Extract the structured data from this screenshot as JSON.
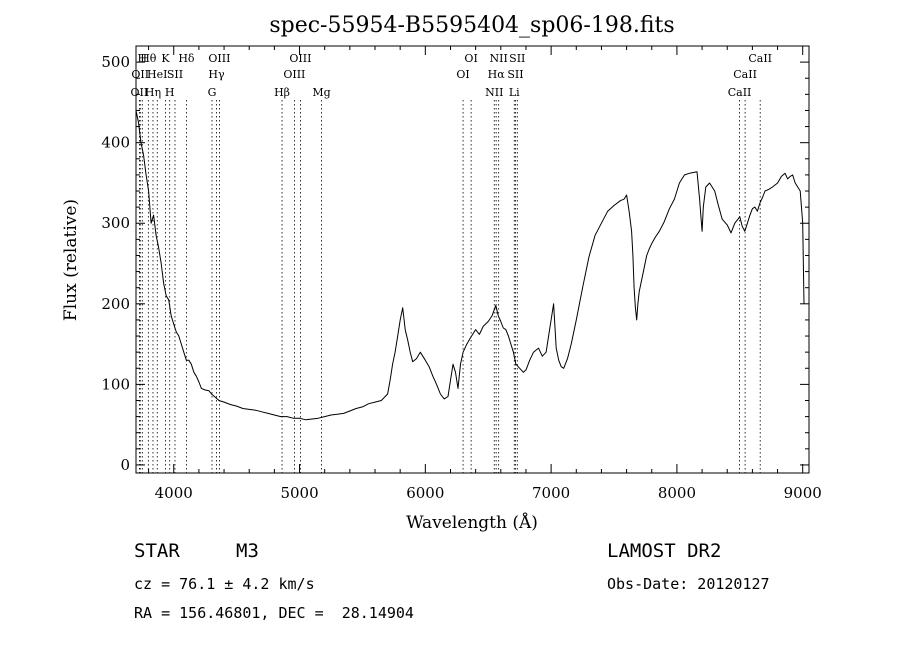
{
  "chart_data": {
    "type": "line",
    "title": "spec-55954-B5595404_sp06-198.fits",
    "xlabel": "Wavelength (Å)",
    "ylabel": "Flux (relative)",
    "xlim": [
      3700,
      9050
    ],
    "ylim": [
      -10,
      520
    ],
    "xticks": [
      4000,
      5000,
      6000,
      7000,
      8000,
      9000
    ],
    "yticks": [
      0,
      100,
      200,
      300,
      400,
      500
    ],
    "grid": false,
    "series": [
      {
        "x": [
          3700,
          3720,
          3740,
          3760,
          3780,
          3800,
          3820,
          3840,
          3860,
          3880,
          3900,
          3920,
          3940,
          3960,
          3980,
          4000,
          4020,
          4040,
          4060,
          4080,
          4100,
          4120,
          4140,
          4160,
          4180,
          4200,
          4220,
          4250,
          4280,
          4300,
          4330,
          4360,
          4400,
          4450,
          4500,
          4550,
          4600,
          4650,
          4700,
          4750,
          4800,
          4850,
          4900,
          4950,
          5000,
          5050,
          5100,
          5150,
          5200,
          5250,
          5300,
          5350,
          5400,
          5450,
          5500,
          5550,
          5600,
          5650,
          5700,
          5720,
          5740,
          5760,
          5780,
          5800,
          5820,
          5840,
          5860,
          5880,
          5900,
          5930,
          5960,
          6000,
          6030,
          6060,
          6090,
          6120,
          6150,
          6180,
          6200,
          6220,
          6240,
          6260,
          6280,
          6300,
          6330,
          6360,
          6400,
          6430,
          6460,
          6500,
          6530,
          6560,
          6580,
          6600,
          6620,
          6640,
          6660,
          6680,
          6700,
          6720,
          6750,
          6780,
          6800,
          6830,
          6860,
          6900,
          6930,
          6960,
          6980,
          7000,
          7020,
          7040,
          7060,
          7080,
          7100,
          7130,
          7160,
          7200,
          7250,
          7300,
          7350,
          7400,
          7450,
          7500,
          7550,
          7580,
          7600,
          7620,
          7640,
          7650,
          7660,
          7670,
          7680,
          7690,
          7700,
          7720,
          7740,
          7760,
          7780,
          7800,
          7830,
          7860,
          7900,
          7940,
          7980,
          8020,
          8060,
          8100,
          8130,
          8160,
          8180,
          8190,
          8200,
          8210,
          8230,
          8260,
          8300,
          8330,
          8360,
          8400,
          8430,
          8460,
          8500,
          8520,
          8540,
          8560,
          8580,
          8600,
          8620,
          8640,
          8660,
          8680,
          8700,
          8730,
          8760,
          8800,
          8830,
          8860,
          8880,
          8900,
          8920,
          8940,
          8960,
          8980,
          9000,
          9010
        ],
        "y": [
          440,
          425,
          400,
          385,
          360,
          340,
          300,
          310,
          285,
          270,
          250,
          225,
          210,
          205,
          185,
          175,
          165,
          160,
          150,
          140,
          130,
          130,
          125,
          115,
          110,
          103,
          95,
          93,
          92,
          88,
          84,
          80,
          78,
          75,
          73,
          70,
          69,
          68,
          66,
          64,
          62,
          60,
          60,
          58,
          58,
          56,
          57,
          58,
          60,
          62,
          63,
          64,
          67,
          70,
          72,
          76,
          78,
          80,
          88,
          105,
          125,
          140,
          160,
          180,
          195,
          168,
          155,
          140,
          128,
          132,
          140,
          130,
          122,
          110,
          100,
          88,
          82,
          85,
          105,
          125,
          115,
          95,
          125,
          140,
          150,
          158,
          168,
          162,
          172,
          178,
          185,
          198,
          185,
          178,
          170,
          168,
          160,
          150,
          140,
          125,
          120,
          115,
          118,
          130,
          140,
          145,
          135,
          140,
          160,
          180,
          200,
          145,
          130,
          122,
          120,
          132,
          150,
          180,
          220,
          258,
          285,
          300,
          315,
          322,
          328,
          330,
          335,
          315,
          290,
          260,
          220,
          195,
          180,
          200,
          215,
          230,
          245,
          260,
          268,
          275,
          283,
          290,
          302,
          318,
          330,
          350,
          360,
          362,
          363,
          364,
          330,
          310,
          290,
          320,
          345,
          350,
          340,
          322,
          305,
          298,
          288,
          300,
          308,
          296,
          290,
          300,
          310,
          318,
          320,
          315,
          325,
          332,
          340,
          342,
          345,
          350,
          358,
          362,
          355,
          358,
          360,
          350,
          345,
          340,
          300,
          200
        ]
      }
    ]
  },
  "spectral_lines": [
    {
      "wl": 3727,
      "label": "OII",
      "row": 3
    },
    {
      "wl": 3734,
      "label": "OII",
      "row": 2
    },
    {
      "wl": 3750,
      "label": "H",
      "row": 1
    },
    {
      "wl": 3798,
      "label": "Hθ",
      "row": 1
    },
    {
      "wl": 3835,
      "label": "Hη",
      "row": 3
    },
    {
      "wl": 3869,
      "label": "HeI",
      "row": 2
    },
    {
      "wl": 3934,
      "label": "K",
      "row": 1
    },
    {
      "wl": 3968,
      "label": "H",
      "row": 3
    },
    {
      "wl": 4010,
      "label": "SII",
      "row": 2
    },
    {
      "wl": 4101,
      "label": "Hδ",
      "row": 1
    },
    {
      "wl": 4304,
      "label": "G",
      "row": 3
    },
    {
      "wl": 4340,
      "label": "Hγ",
      "row": 2
    },
    {
      "wl": 4363,
      "label": "OIII",
      "row": 1
    },
    {
      "wl": 4861,
      "label": "Hβ",
      "row": 3
    },
    {
      "wl": 4959,
      "label": "OIII",
      "row": 2
    },
    {
      "wl": 5007,
      "label": "OIII",
      "row": 1
    },
    {
      "wl": 5175,
      "label": "Mg",
      "row": 3
    },
    {
      "wl": 6300,
      "label": "OI",
      "row": 2
    },
    {
      "wl": 6364,
      "label": "OI",
      "row": 1
    },
    {
      "wl": 6548,
      "label": "NII",
      "row": 3
    },
    {
      "wl": 6563,
      "label": "Hα",
      "row": 2
    },
    {
      "wl": 6583,
      "label": "NII",
      "row": 1
    },
    {
      "wl": 6707,
      "label": "Li",
      "row": 3
    },
    {
      "wl": 6717,
      "label": "SII",
      "row": 2
    },
    {
      "wl": 6731,
      "label": "SII",
      "row": 1
    },
    {
      "wl": 8498,
      "label": "CaII",
      "row": 3
    },
    {
      "wl": 8542,
      "label": "CaII",
      "row": 2
    },
    {
      "wl": 8662,
      "label": "CaII",
      "row": 1
    }
  ],
  "info": {
    "object_class": "STAR",
    "subclass": "M3",
    "redshift": "cz = 76.1 ± 4.2 km/s",
    "coords": "RA = 156.46801, DEC =  28.14904",
    "survey": "LAMOST DR2",
    "obs_date": "Obs-Date: 20120127"
  },
  "colors": {
    "spectrum": "#000000",
    "line_markers": "#000000",
    "background": "#ffffff"
  }
}
